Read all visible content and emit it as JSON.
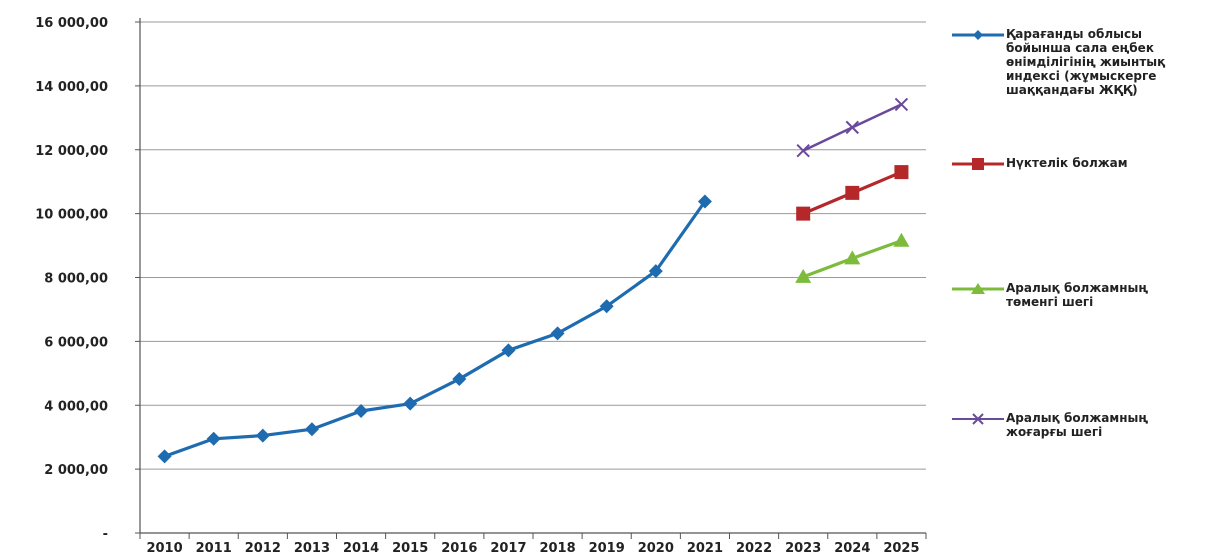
{
  "chart_data": {
    "type": "line",
    "categories": [
      "2010",
      "2011",
      "2012",
      "2013",
      "2014",
      "2015",
      "2016",
      "2017",
      "2018",
      "2019",
      "2020",
      "2021",
      "2022",
      "2023",
      "2024",
      "2025"
    ],
    "ylim": [
      0,
      16000
    ],
    "yticks": [
      0,
      2000,
      4000,
      6000,
      8000,
      10000,
      12000,
      14000,
      16000
    ],
    "ytick_labels": [
      "-",
      "2 000,00",
      "4 000,00",
      "6 000,00",
      "8 000,00",
      "10 000,00",
      "12 000,00",
      "14 000,00",
      "16 000,00"
    ],
    "grid": true,
    "legend_position": "right",
    "series": [
      {
        "name": "Қарағанды облысы\n бойынша сала еңбек\nөнімділігінің жиынтық\n индексі (жұмыскерге\nшаққандағы ЖҚҚ)",
        "color": "#1f6bb0",
        "marker": "diamond",
        "values": [
          2400,
          2950,
          3050,
          3250,
          3820,
          4050,
          4820,
          5720,
          6250,
          7100,
          8200,
          10380,
          null,
          null,
          null,
          null
        ]
      },
      {
        "name": "Нүктелік болжам",
        "color": "#b5282a",
        "marker": "square",
        "values": [
          null,
          null,
          null,
          null,
          null,
          null,
          null,
          null,
          null,
          null,
          null,
          null,
          null,
          10000,
          10650,
          11300
        ]
      },
      {
        "name": "Аралық болжамның\nтөменгі шегі",
        "color": "#7cbb3c",
        "marker": "triangle",
        "values": [
          null,
          null,
          null,
          null,
          null,
          null,
          null,
          null,
          null,
          null,
          null,
          null,
          null,
          8020,
          8600,
          9150
        ]
      },
      {
        "name": "Аралық болжамның\nжоғарғы шегі",
        "color": "#6a4a9a",
        "marker": "x",
        "values": [
          null,
          null,
          null,
          null,
          null,
          null,
          null,
          null,
          null,
          null,
          null,
          null,
          null,
          11970,
          12700,
          13420
        ]
      }
    ]
  }
}
